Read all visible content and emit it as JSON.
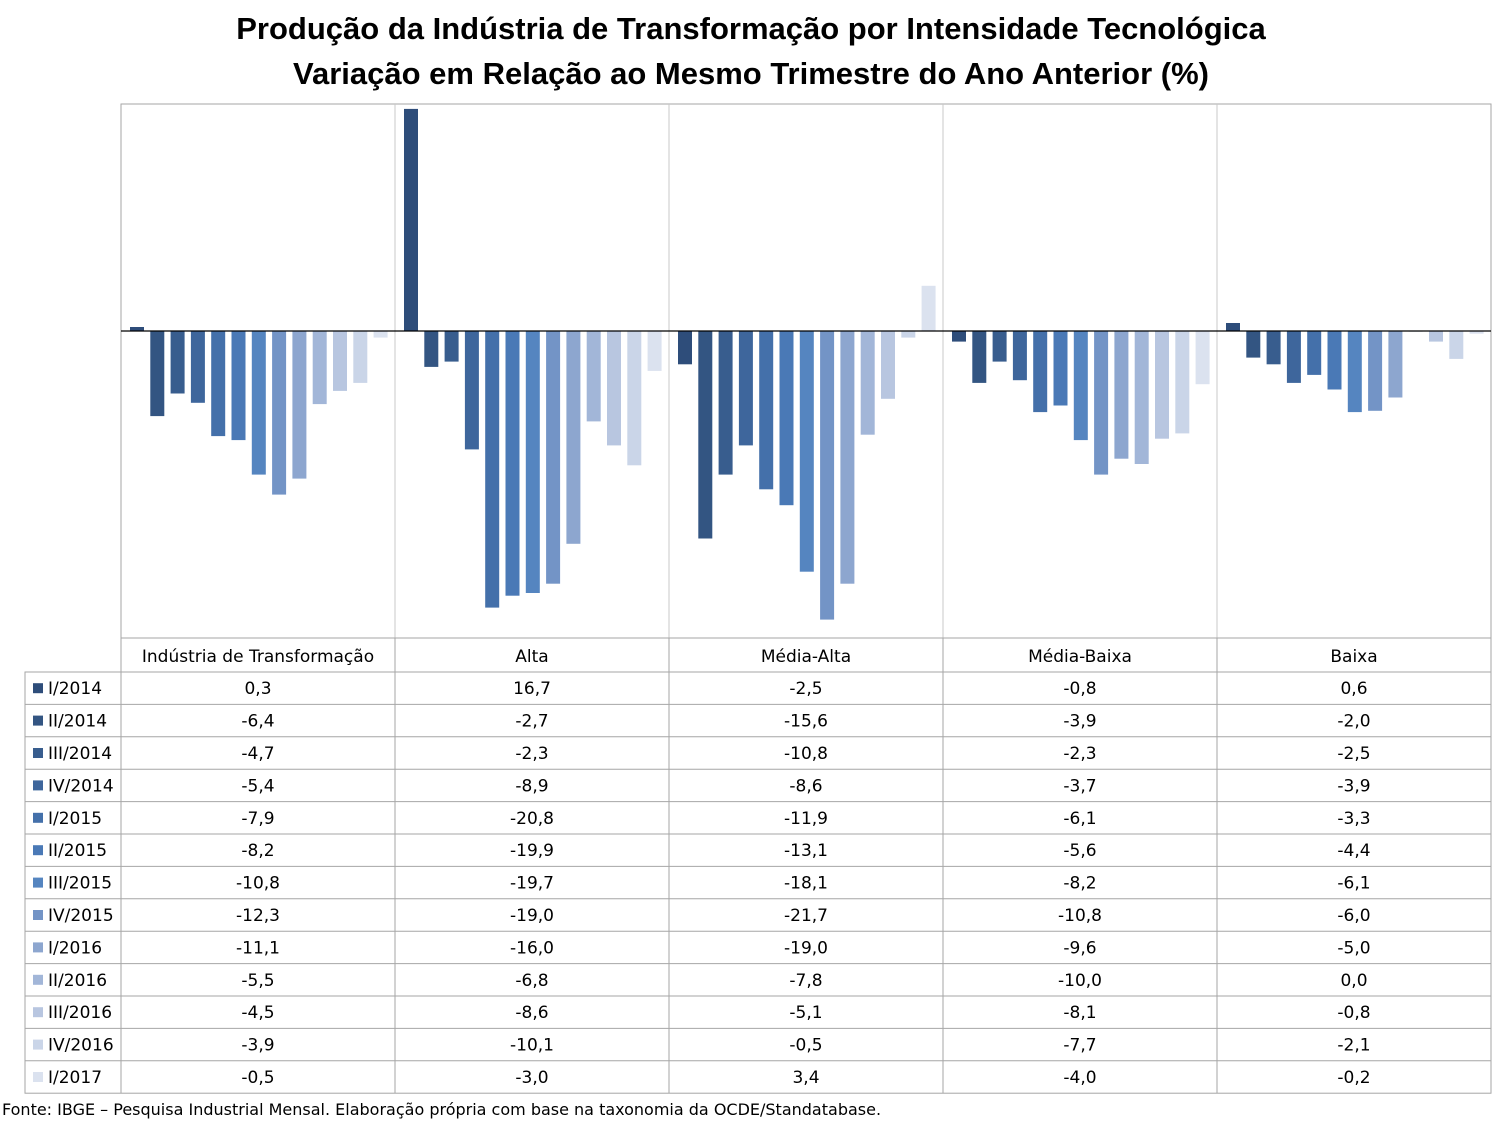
{
  "title": "Produção da Indústria de Transformação por Intensidade Tecnológica",
  "subtitle": "Variação em Relação ao Mesmo Trimestre do Ano Anterior (%)",
  "source": "Fonte: IBGE – Pesquisa Industrial Mensal. Elaboração própria com base na taxonomia da OCDE/Standatabase.",
  "chart_data": {
    "type": "bar",
    "categories": [
      "Indústria de Transformação",
      "Alta",
      "Média-Alta",
      "Média-Baixa",
      "Baixa"
    ],
    "ylim": [
      -23.2,
      17.4
    ],
    "grid": false,
    "legend": "table-left",
    "series": [
      {
        "name": "I/2014",
        "color": "#2e4d7a",
        "values": [
          0.3,
          16.7,
          -2.5,
          -0.8,
          0.6
        ],
        "labels": [
          "0,3",
          "16,7",
          "-2,5",
          "-0,8",
          "0,6"
        ]
      },
      {
        "name": "II/2014",
        "color": "#335582",
        "values": [
          -6.4,
          -2.7,
          -15.6,
          -3.9,
          -2.0
        ],
        "labels": [
          "-6,4",
          "-2,7",
          "-15,6",
          "-3,9",
          "-2,0"
        ]
      },
      {
        "name": "III/2014",
        "color": "#385d8e",
        "values": [
          -4.7,
          -2.3,
          -10.8,
          -2.3,
          -2.5
        ],
        "labels": [
          "-4,7",
          "-2,3",
          "-10,8",
          "-2,3",
          "-2,5"
        ]
      },
      {
        "name": "IV/2014",
        "color": "#3e669c",
        "values": [
          -5.4,
          -8.9,
          -8.6,
          -3.7,
          -3.9
        ],
        "labels": [
          "-5,4",
          "-8,9",
          "-8,6",
          "-3,7",
          "-3,9"
        ]
      },
      {
        "name": "I/2015",
        "color": "#4470aa",
        "values": [
          -7.9,
          -20.8,
          -11.9,
          -6.1,
          -3.3
        ],
        "labels": [
          "-7,9",
          "-20,8",
          "-11,9",
          "-6,1",
          "-3,3"
        ]
      },
      {
        "name": "II/2015",
        "color": "#4a79b6",
        "values": [
          -8.2,
          -19.9,
          -13.1,
          -5.6,
          -4.4
        ],
        "labels": [
          "-8,2",
          "-19,9",
          "-13,1",
          "-5,6",
          "-4,4"
        ]
      },
      {
        "name": "III/2015",
        "color": "#5585c0",
        "values": [
          -10.8,
          -19.7,
          -18.1,
          -8.2,
          -6.1
        ],
        "labels": [
          "-10,8",
          "-19,7",
          "-18,1",
          "-8,2",
          "-6,1"
        ]
      },
      {
        "name": "IV/2015",
        "color": "#7394c6",
        "values": [
          -12.3,
          -19.0,
          -21.7,
          -10.8,
          -6.0
        ],
        "labels": [
          "-12,3",
          "-19,0",
          "-21,7",
          "-10,8",
          "-6,0"
        ]
      },
      {
        "name": "I/2016",
        "color": "#8da6cf",
        "values": [
          -11.1,
          -16.0,
          -19.0,
          -9.6,
          -5.0
        ],
        "labels": [
          "-11,1",
          "-16,0",
          "-19,0",
          "-9,6",
          "-5,0"
        ]
      },
      {
        "name": "II/2016",
        "color": "#a2b6d8",
        "values": [
          -5.5,
          -6.8,
          -7.8,
          -10.0,
          0.0
        ],
        "labels": [
          "-5,5",
          "-6,8",
          "-7,8",
          "-10,0",
          "0,0"
        ]
      },
      {
        "name": "III/2016",
        "color": "#b8c6e0",
        "values": [
          -4.5,
          -8.6,
          -5.1,
          -8.1,
          -0.8
        ],
        "labels": [
          "-4,5",
          "-8,6",
          "-5,1",
          "-8,1",
          "-0,8"
        ]
      },
      {
        "name": "IV/2016",
        "color": "#cad5e8",
        "values": [
          -3.9,
          -10.1,
          -0.5,
          -7.7,
          -2.1
        ],
        "labels": [
          "-3,9",
          "-10,1",
          "-0,5",
          "-7,7",
          "-2,1"
        ]
      },
      {
        "name": "I/2017",
        "color": "#dbe2ef",
        "values": [
          -0.5,
          -3.0,
          3.4,
          -4.0,
          -0.2
        ],
        "labels": [
          "-0,5",
          "-3,0",
          "3,4",
          "-4,0",
          "-0,2"
        ]
      }
    ]
  }
}
